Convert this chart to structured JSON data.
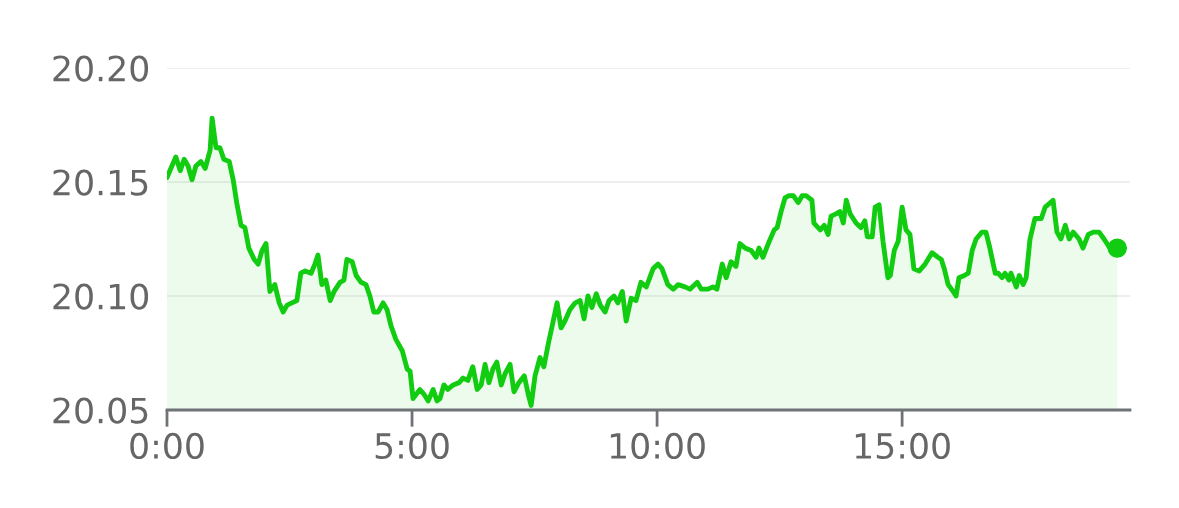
{
  "chart_data": {
    "type": "area",
    "color": "#11cc11",
    "x": [
      0,
      0.1,
      0.18,
      0.27,
      0.35,
      0.43,
      0.51,
      0.59,
      0.69,
      0.78,
      0.88,
      0.92,
      1.0,
      1.08,
      1.16,
      1.27,
      1.35,
      1.43,
      1.51,
      1.59,
      1.67,
      1.78,
      1.86,
      1.94,
      2.02,
      2.1,
      2.2,
      2.29,
      2.37,
      2.45,
      2.55,
      2.65,
      2.73,
      2.82,
      2.94,
      3.02,
      3.08,
      3.16,
      3.24,
      3.33,
      3.41,
      3.53,
      3.61,
      3.67,
      3.78,
      3.86,
      3.96,
      4.06,
      4.14,
      4.22,
      4.31,
      4.41,
      4.49,
      4.57,
      4.67,
      4.8,
      4.9,
      4.96,
      5.02,
      5.16,
      5.24,
      5.33,
      5.43,
      5.51,
      5.57,
      5.65,
      5.73,
      5.84,
      5.96,
      6.04,
      6.14,
      6.24,
      6.33,
      6.41,
      6.49,
      6.57,
      6.65,
      6.73,
      6.82,
      6.9,
      7.0,
      7.08,
      7.18,
      7.29,
      7.37,
      7.43,
      7.51,
      7.61,
      7.69,
      7.78,
      7.86,
      7.96,
      8.04,
      8.12,
      8.22,
      8.33,
      8.43,
      8.51,
      8.59,
      8.67,
      8.76,
      8.84,
      8.94,
      9.02,
      9.12,
      9.2,
      9.29,
      9.37,
      9.47,
      9.57,
      9.67,
      9.78,
      9.92,
      10.02,
      10.1,
      10.22,
      10.33,
      10.43,
      10.57,
      10.67,
      10.82,
      10.9,
      11.04,
      11.14,
      11.22,
      11.33,
      11.41,
      11.51,
      11.61,
      11.69,
      11.8,
      11.92,
      12.02,
      12.08,
      12.16,
      12.27,
      12.39,
      12.45,
      12.53,
      12.61,
      12.69,
      12.78,
      12.88,
      12.96,
      13.04,
      13.16,
      13.2,
      13.33,
      13.41,
      13.49,
      13.55,
      13.65,
      13.73,
      13.8,
      13.86,
      13.94,
      14.06,
      14.16,
      14.24,
      14.29,
      14.39,
      14.45,
      14.53,
      14.61,
      14.71,
      14.76,
      14.84,
      14.92,
      15.0,
      15.08,
      15.16,
      15.24,
      15.35,
      15.47,
      15.61,
      15.73,
      15.8,
      15.86,
      15.94,
      16.04,
      16.1,
      16.16,
      16.27,
      16.35,
      16.43,
      16.51,
      16.63,
      16.71,
      16.78,
      16.9,
      16.96,
      17.04,
      17.1,
      17.18,
      17.22,
      17.33,
      17.39,
      17.47,
      17.53,
      17.61,
      17.71,
      17.84,
      17.92,
      18.08,
      18.16,
      18.24,
      18.33,
      18.41,
      18.49,
      18.61,
      18.69,
      18.8,
      18.9,
      19.02,
      19.12,
      19.24,
      19.39
    ],
    "values": [
      20.152,
      20.157,
      20.161,
      20.155,
      20.16,
      20.157,
      20.151,
      20.157,
      20.159,
      20.156,
      20.164,
      20.178,
      20.165,
      20.165,
      20.16,
      20.159,
      20.151,
      20.14,
      20.131,
      20.13,
      20.121,
      20.116,
      20.114,
      20.12,
      20.123,
      20.102,
      20.105,
      20.097,
      20.093,
      20.096,
      20.097,
      20.098,
      20.11,
      20.111,
      20.11,
      20.114,
      20.118,
      20.105,
      20.107,
      20.098,
      20.102,
      20.106,
      20.107,
      20.116,
      20.115,
      20.109,
      20.106,
      20.105,
      20.1,
      20.093,
      20.093,
      20.097,
      20.094,
      20.087,
      20.081,
      20.076,
      20.068,
      20.067,
      20.055,
      20.059,
      20.057,
      20.054,
      20.059,
      20.054,
      20.055,
      20.061,
      20.059,
      20.061,
      20.062,
      20.064,
      20.063,
      20.069,
      20.059,
      20.061,
      20.07,
      20.062,
      20.068,
      20.071,
      20.061,
      20.066,
      20.07,
      20.058,
      20.062,
      20.065,
      20.057,
      20.052,
      20.065,
      20.073,
      20.069,
      20.079,
      20.087,
      20.097,
      20.086,
      20.089,
      20.094,
      20.097,
      20.098,
      20.09,
      20.1,
      20.095,
      20.101,
      20.096,
      20.093,
      20.098,
      20.1,
      20.097,
      20.102,
      20.089,
      20.099,
      20.098,
      20.106,
      20.104,
      20.112,
      20.114,
      20.112,
      20.105,
      20.103,
      20.105,
      20.104,
      20.103,
      20.106,
      20.103,
      20.103,
      20.104,
      20.103,
      20.114,
      20.108,
      20.115,
      20.113,
      20.123,
      20.121,
      20.12,
      20.117,
      20.121,
      20.117,
      20.123,
      20.129,
      20.13,
      20.137,
      20.143,
      20.144,
      20.144,
      20.141,
      20.144,
      20.144,
      20.142,
      20.132,
      20.129,
      20.131,
      20.127,
      20.135,
      20.136,
      20.137,
      20.132,
      20.142,
      20.136,
      20.132,
      20.13,
      20.133,
      20.126,
      20.126,
      20.139,
      20.14,
      20.124,
      20.108,
      20.109,
      20.12,
      20.124,
      20.139,
      20.129,
      20.127,
      20.112,
      20.111,
      20.114,
      20.119,
      20.117,
      20.116,
      20.112,
      20.105,
      20.102,
      20.1,
      20.108,
      20.109,
      20.11,
      20.12,
      20.125,
      20.128,
      20.128,
      20.122,
      20.11,
      20.11,
      20.108,
      20.11,
      20.107,
      20.11,
      20.104,
      20.109,
      20.105,
      20.108,
      20.125,
      20.134,
      20.134,
      20.139,
      20.142,
      20.128,
      20.125,
      20.131,
      20.125,
      20.128,
      20.125,
      20.121,
      20.127,
      20.128,
      20.128,
      20.125,
      20.121,
      20.121
    ],
    "xlim": [
      0,
      19.65
    ],
    "ylim": [
      20.05,
      20.2
    ],
    "xticks": [
      {
        "value": 0,
        "label": "0:00"
      },
      {
        "value": 5,
        "label": "5:00"
      },
      {
        "value": 10,
        "label": "10:00"
      },
      {
        "value": 15,
        "label": "15:00"
      }
    ],
    "yticks": [
      {
        "value": 20.05,
        "label": "20.05"
      },
      {
        "value": 20.1,
        "label": "20.10"
      },
      {
        "value": 20.15,
        "label": "20.15"
      },
      {
        "value": 20.2,
        "label": "20.20"
      }
    ],
    "grid": "y"
  }
}
